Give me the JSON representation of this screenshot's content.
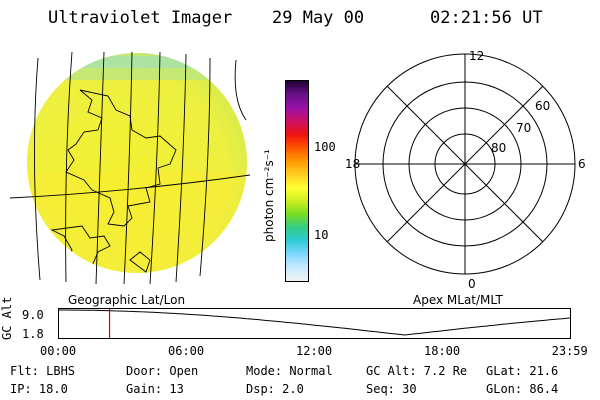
{
  "header": {
    "instrument": "Ultraviolet Imager",
    "date": "29 May 00",
    "time": "02:21:56 UT"
  },
  "colorbar": {
    "unit_label": "photon cm⁻²s⁻¹",
    "tick_100": "100",
    "tick_10": "10",
    "colors": [
      "#f2f2f2",
      "#c9e9ff",
      "#80d8ff",
      "#2ecbd6",
      "#33cc88",
      "#77dd22",
      "#ccee22",
      "#ffff33",
      "#ffcc22",
      "#ff9900",
      "#ff5500",
      "#ee1111",
      "#cc1166",
      "#9911aa",
      "#661188",
      "#220033"
    ]
  },
  "polar_plot": {
    "mlt_top": "12",
    "mlt_left": "18",
    "mlt_right": "6",
    "mlt_bottom": "0",
    "lat_60": "60",
    "lat_70": "70",
    "lat_80": "80"
  },
  "altitude_plot": {
    "left_title": "Geographic Lat/Lon",
    "right_title": "Apex MLat/MLT",
    "ylabel": "GC Alt",
    "y_top": "9.0",
    "y_bottom": "1.8",
    "x_ticks": [
      "00:00",
      "06:00",
      "12:00",
      "18:00",
      "23:59"
    ],
    "current_time_hours": 2.37,
    "marker_color": "#dd0000"
  },
  "info": {
    "flt": "Flt: LBHS",
    "door": "Door: Open",
    "mode": "Mode: Normal",
    "gcalt": "GC Alt: 7.2 Re",
    "glat": "GLat:  21.6",
    "ip": "IP: 18.0",
    "gain": "Gain: 13",
    "dsp": "Dsp:    2.0",
    "seq": "Seq: 30",
    "glon": "GLon:  86.4"
  }
}
